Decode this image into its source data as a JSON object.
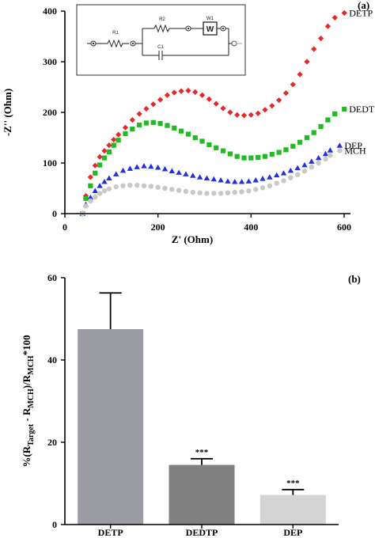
{
  "chart_data": [
    {
      "type": "scatter",
      "panel_label": "(a)",
      "xlabel": "Z' (Ohm)",
      "ylabel": "-Z'' (Ohm)",
      "xlim": [
        0,
        600
      ],
      "ylim": [
        0,
        400
      ],
      "xticks": [
        0,
        200,
        400,
        600
      ],
      "yticks": [
        0,
        100,
        200,
        300,
        400
      ],
      "grid": false,
      "legend": "right, labels next to series ends",
      "inset": {
        "type": "equivalent-circuit",
        "labels": {
          "r1": "R1",
          "r2": "R2",
          "w1": "W1",
          "w_box": "W",
          "c1": "C1"
        }
      },
      "series": [
        {
          "name": "DETP",
          "color": "#e8272a",
          "marker": "diamond",
          "x": [
            38,
            45,
            55,
            65,
            75,
            85,
            95,
            105,
            115,
            130,
            145,
            160,
            175,
            190,
            205,
            220,
            235,
            250,
            265,
            280,
            295,
            310,
            325,
            340,
            355,
            370,
            385,
            400,
            415,
            430,
            445,
            460,
            475,
            490,
            505,
            520,
            535,
            550,
            565,
            580
          ],
          "y": [
            0,
            35,
            72,
            95,
            112,
            124,
            135,
            146,
            156,
            170,
            185,
            197,
            207,
            216,
            225,
            234,
            239,
            242,
            243,
            240,
            234,
            226,
            217,
            208,
            200,
            195,
            194,
            195,
            198,
            205,
            213,
            224,
            238,
            255,
            275,
            300,
            325,
            346,
            370,
            387
          ]
        },
        {
          "name": "DEDTP",
          "color": "#22bb22",
          "marker": "square",
          "x": [
            38,
            45,
            55,
            65,
            75,
            85,
            95,
            105,
            115,
            130,
            145,
            160,
            175,
            190,
            205,
            220,
            235,
            250,
            265,
            280,
            295,
            310,
            325,
            340,
            355,
            370,
            385,
            400,
            415,
            430,
            445,
            460,
            475,
            490,
            505,
            520,
            535,
            550,
            565,
            580
          ],
          "y": [
            0,
            30,
            55,
            80,
            96,
            110,
            122,
            135,
            145,
            158,
            167,
            175,
            179,
            180,
            178,
            174,
            169,
            163,
            157,
            150,
            143,
            136,
            130,
            124,
            118,
            113,
            110,
            110,
            111,
            113,
            117,
            121,
            126,
            133,
            141,
            150,
            160,
            172,
            185,
            197
          ]
        },
        {
          "name": "DEP",
          "color": "#2230e0",
          "marker": "triangle",
          "x": [
            38,
            45,
            55,
            65,
            75,
            85,
            95,
            110,
            125,
            140,
            155,
            170,
            185,
            200,
            215,
            230,
            245,
            260,
            275,
            290,
            305,
            320,
            335,
            350,
            365,
            380,
            395,
            410,
            425,
            440,
            455,
            470,
            485,
            500,
            515,
            530,
            545,
            560,
            570
          ],
          "y": [
            0,
            18,
            32,
            45,
            55,
            63,
            70,
            78,
            85,
            89,
            92,
            94,
            93,
            91,
            88,
            84,
            81,
            78,
            75,
            72,
            70,
            68,
            66,
            64,
            63,
            63,
            64,
            66,
            69,
            72,
            76,
            80,
            85,
            90,
            96,
            103,
            110,
            118,
            125
          ]
        },
        {
          "name": "MCH",
          "color": "#c8c8c8",
          "marker": "circle",
          "x": [
            38,
            45,
            55,
            65,
            75,
            85,
            95,
            110,
            125,
            140,
            155,
            170,
            185,
            200,
            215,
            230,
            245,
            260,
            275,
            290,
            305,
            320,
            335,
            350,
            365,
            380,
            395,
            410,
            425,
            440,
            455,
            470,
            485,
            500,
            515,
            530,
            545,
            560,
            570
          ],
          "y": [
            0,
            15,
            25,
            33,
            40,
            45,
            49,
            53,
            55,
            56,
            56,
            55,
            54,
            52,
            50,
            48,
            46,
            44,
            42,
            41,
            40,
            40,
            40,
            41,
            42,
            43,
            45,
            48,
            51,
            55,
            60,
            65,
            71,
            77,
            84,
            92,
            100,
            108,
            115
          ]
        }
      ]
    },
    {
      "type": "bar",
      "panel_label": "(b)",
      "categories": [
        "DETP",
        "DEDTP",
        "DEP"
      ],
      "values": [
        47.5,
        14.5,
        7.2
      ],
      "error_plus": [
        8.8,
        1.5,
        1.3
      ],
      "significance": [
        "",
        "***",
        "***"
      ],
      "colors": [
        "#9b9ba3",
        "#808080",
        "#d4d4d4"
      ],
      "ylabel_parts": [
        "%(R",
        "Target",
        " - R",
        "MCH",
        ")/R",
        "MCH",
        "*100"
      ],
      "ylim": [
        0,
        60
      ],
      "yticks": [
        0,
        20,
        40,
        60
      ],
      "grid": false
    }
  ]
}
